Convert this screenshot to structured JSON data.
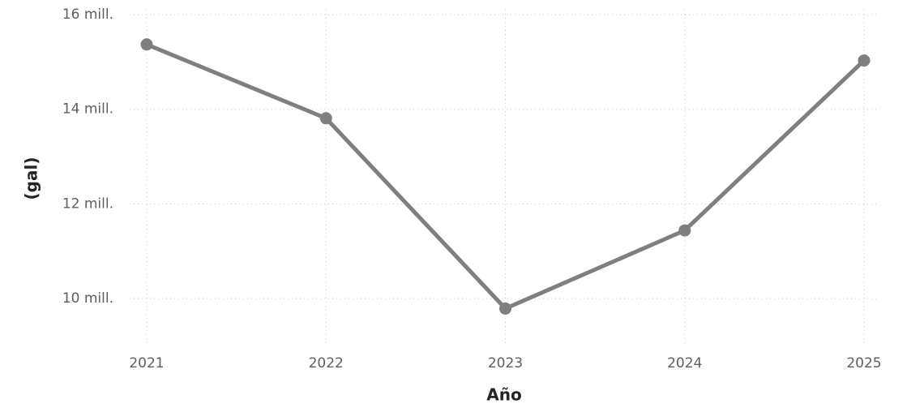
{
  "chart_data": {
    "type": "line",
    "x_label": "Año",
    "y_label": "(gal)",
    "x": [
      2021,
      2022,
      2023,
      2024,
      2025
    ],
    "series": [
      {
        "name": null,
        "color": "#7f7f7f",
        "values": [
          15370000,
          13810000,
          9790000,
          11440000,
          15030000
        ]
      }
    ],
    "xlim": [
      2021,
      2025
    ],
    "xticks": [
      2021,
      2022,
      2023,
      2024,
      2025
    ],
    "ylim": [
      9000000,
      16000000
    ],
    "yticks": [
      {
        "value": 10000000,
        "label": "10 mill."
      },
      {
        "value": 12000000,
        "label": "12 mill."
      },
      {
        "value": 14000000,
        "label": "14 mill."
      },
      {
        "value": 16000000,
        "label": "16 mill."
      }
    ],
    "grid": true,
    "legend": false
  }
}
